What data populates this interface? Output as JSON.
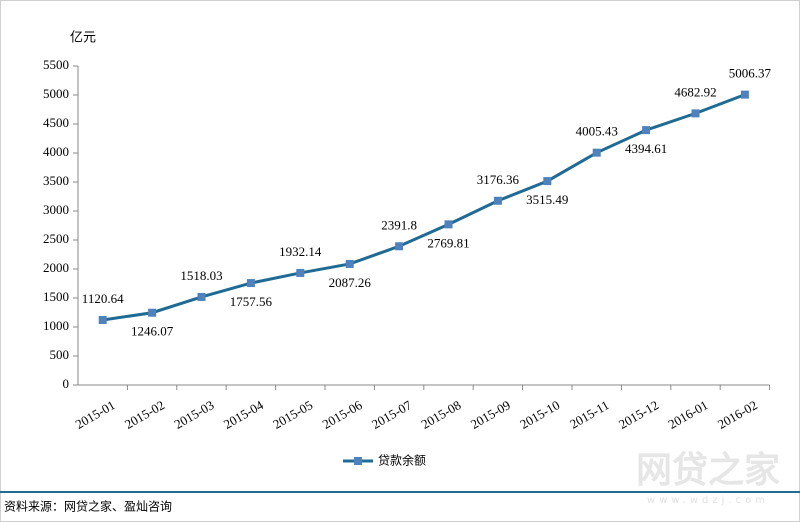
{
  "chart_data": {
    "type": "line",
    "y_axis_label": "亿元",
    "categories": [
      "2015-01",
      "2015-02",
      "2015-03",
      "2015-04",
      "2015-05",
      "2015-06",
      "2015-07",
      "2015-08",
      "2015-09",
      "2015-10",
      "2015-11",
      "2015-12",
      "2016-01",
      "2016-02"
    ],
    "series": [
      {
        "name": "贷款余额",
        "color": "#1f6b94",
        "marker_color": "#4f81bd",
        "values": [
          1120.64,
          1246.07,
          1518.03,
          1757.56,
          1932.14,
          2087.26,
          2391.8,
          2769.81,
          3176.36,
          3515.49,
          4005.43,
          4394.61,
          4682.92,
          5006.37
        ]
      }
    ],
    "ylim": [
      0,
      5500
    ],
    "yticks": [
      0,
      500,
      1000,
      1500,
      2000,
      2500,
      3000,
      3500,
      4000,
      4500,
      5000,
      5500
    ],
    "grid": false,
    "legend": "bottom"
  },
  "source": "资料来源：网贷之家、盈灿咨询",
  "watermark": "网贷之家",
  "watermark_url": "www.wdzj.com"
}
